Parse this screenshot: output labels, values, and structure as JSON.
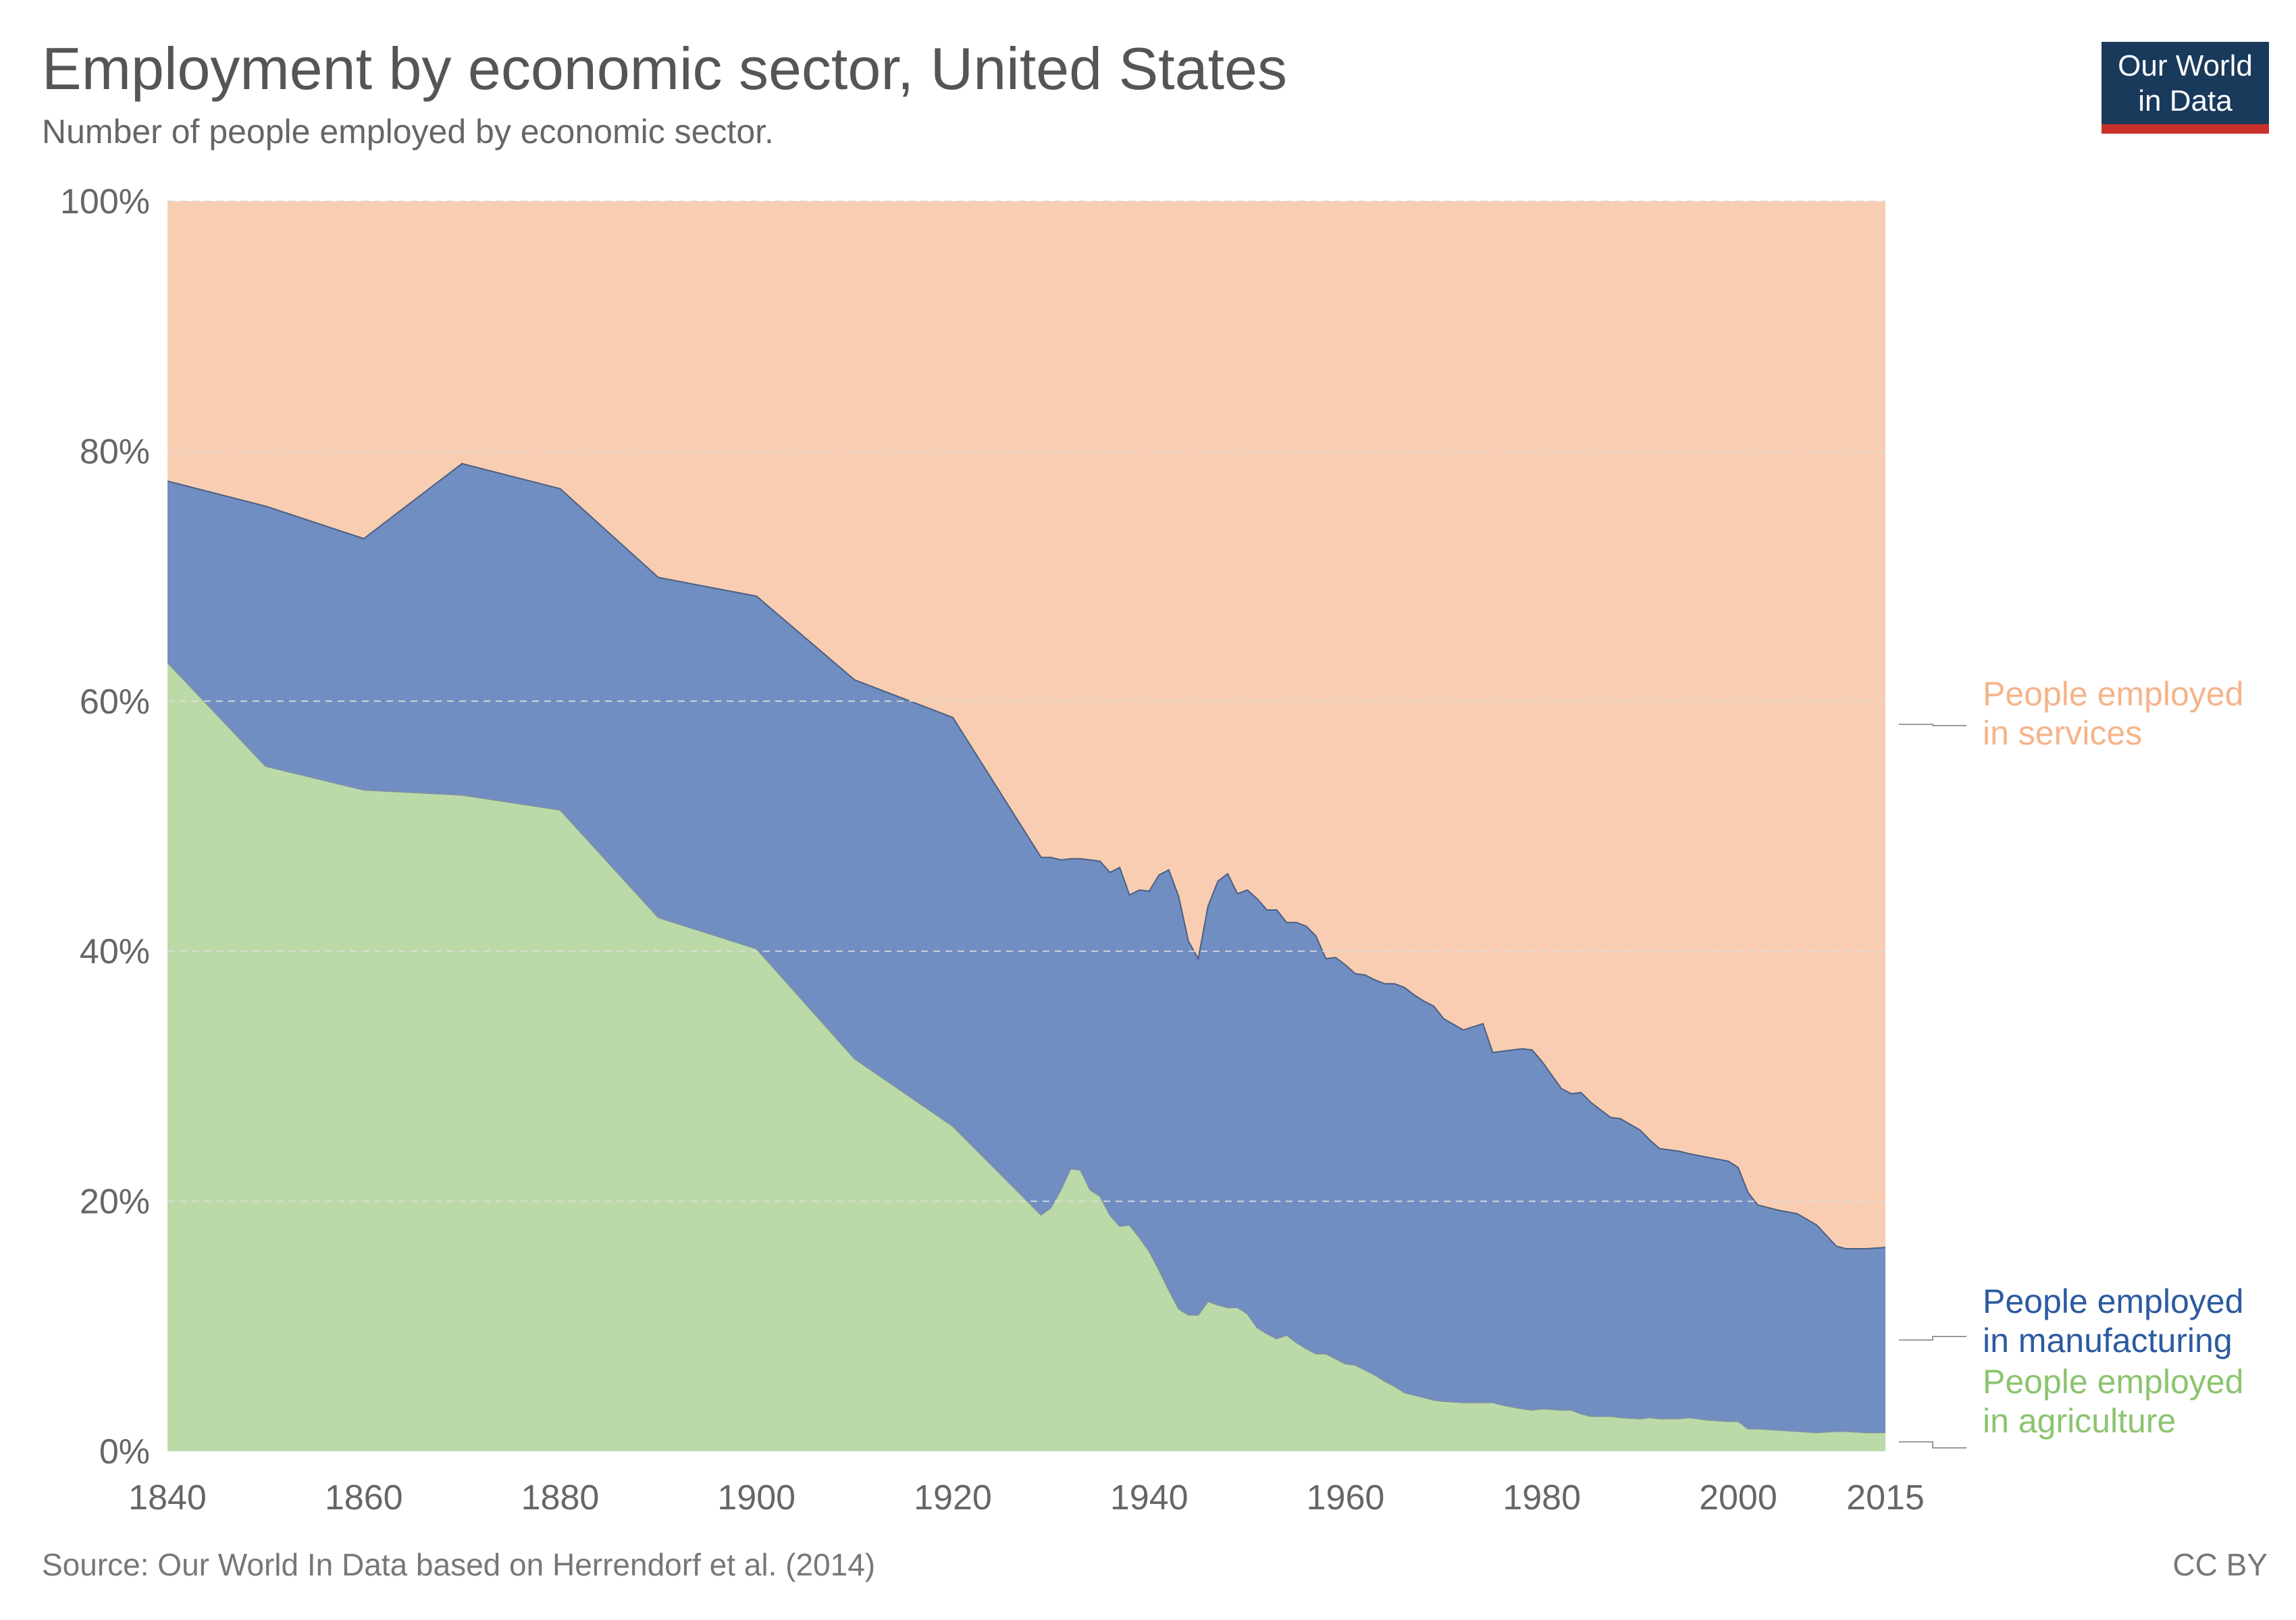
{
  "title": "Employment by economic sector, United States",
  "subtitle": "Number of people employed by economic sector.",
  "source": "Source: Our World In Data based on Herrendorf et al. (2014)",
  "license": "CC BY",
  "logo": {
    "line1": "Our World",
    "line2": "in Data",
    "bg_color": "#1a3a5c",
    "accent_color": "#c8312a"
  },
  "chart_data": {
    "type": "area",
    "stacking": "percent",
    "x_ticks": [
      1840,
      1860,
      1880,
      1900,
      1920,
      1940,
      1960,
      1980,
      2000,
      2015
    ],
    "y_ticks": [
      0,
      20,
      40,
      60,
      80,
      100
    ],
    "y_tick_labels": [
      "0%",
      "20%",
      "40%",
      "60%",
      "80%",
      "100%"
    ],
    "xlim": [
      1840,
      2015
    ],
    "ylim": [
      0,
      100
    ],
    "grid": "horizontal-dashed",
    "legend": "right, direct labels",
    "series": [
      {
        "name": "People employed in agriculture",
        "label_lines": [
          "People employed",
          "in agriculture"
        ],
        "color": "#bcdaa8",
        "label_color": "#8cc46f",
        "points": [
          [
            1840,
            63.1
          ],
          [
            1850,
            54.8
          ],
          [
            1860,
            52.9
          ],
          [
            1870,
            52.5
          ],
          [
            1880,
            51.3
          ],
          [
            1890,
            42.7
          ],
          [
            1900,
            40.2
          ],
          [
            1910,
            31.4
          ],
          [
            1920,
            26.0
          ],
          [
            1929,
            18.9
          ],
          [
            1930,
            19.5
          ],
          [
            1931,
            20.9
          ],
          [
            1932,
            22.6
          ],
          [
            1933,
            22.5
          ],
          [
            1934,
            20.9
          ],
          [
            1935,
            20.4
          ],
          [
            1936,
            18.9
          ],
          [
            1937,
            18.0
          ],
          [
            1938,
            18.1
          ],
          [
            1939,
            17.1
          ],
          [
            1940,
            16.0
          ],
          [
            1941,
            14.5
          ],
          [
            1942,
            12.9
          ],
          [
            1943,
            11.4
          ],
          [
            1944,
            10.9
          ],
          [
            1945,
            10.9
          ],
          [
            1946,
            12.0
          ],
          [
            1947,
            11.7
          ],
          [
            1948,
            11.5
          ],
          [
            1949,
            11.5
          ],
          [
            1950,
            11.0
          ],
          [
            1951,
            9.9
          ],
          [
            1952,
            9.4
          ],
          [
            1953,
            9.0
          ],
          [
            1954,
            9.3
          ],
          [
            1955,
            8.7
          ],
          [
            1956,
            8.2
          ],
          [
            1957,
            7.8
          ],
          [
            1958,
            7.8
          ],
          [
            1959,
            7.4
          ],
          [
            1960,
            7.0
          ],
          [
            1961,
            6.9
          ],
          [
            1962,
            6.5
          ],
          [
            1963,
            6.1
          ],
          [
            1964,
            5.6
          ],
          [
            1965,
            5.2
          ],
          [
            1966,
            4.7
          ],
          [
            1967,
            4.5
          ],
          [
            1968,
            4.3
          ],
          [
            1969,
            4.1
          ],
          [
            1970,
            4.0
          ],
          [
            1972,
            3.9
          ],
          [
            1974,
            3.9
          ],
          [
            1975,
            3.9
          ],
          [
            1976,
            3.7
          ],
          [
            1978,
            3.4
          ],
          [
            1979,
            3.3
          ],
          [
            1980,
            3.4
          ],
          [
            1982,
            3.3
          ],
          [
            1983,
            3.3
          ],
          [
            1984,
            3.0
          ],
          [
            1985,
            2.8
          ],
          [
            1987,
            2.8
          ],
          [
            1988,
            2.7
          ],
          [
            1990,
            2.6
          ],
          [
            1991,
            2.7
          ],
          [
            1992,
            2.6
          ],
          [
            1994,
            2.6
          ],
          [
            1995,
            2.7
          ],
          [
            1997,
            2.5
          ],
          [
            1999,
            2.4
          ],
          [
            2000,
            2.4
          ],
          [
            2001,
            1.8
          ],
          [
            2002,
            1.8
          ],
          [
            2004,
            1.7
          ],
          [
            2006,
            1.6
          ],
          [
            2008,
            1.5
          ],
          [
            2010,
            1.6
          ],
          [
            2011,
            1.6
          ],
          [
            2013,
            1.5
          ],
          [
            2015,
            1.5
          ]
        ]
      },
      {
        "name": "People employed in manufacturing",
        "label_lines": [
          "People employed",
          "in manufacturing"
        ],
        "color": "#718ec2",
        "label_color": "#2c5aa0",
        "points": [
          [
            1840,
            14.5
          ],
          [
            1850,
            20.8
          ],
          [
            1860,
            20.1
          ],
          [
            1870,
            26.5
          ],
          [
            1880,
            25.7
          ],
          [
            1890,
            27.2
          ],
          [
            1900,
            28.2
          ],
          [
            1910,
            30.3
          ],
          [
            1920,
            32.7
          ],
          [
            1929,
            28.6
          ],
          [
            1930,
            28.0
          ],
          [
            1931,
            26.4
          ],
          [
            1932,
            24.8
          ],
          [
            1933,
            24.9
          ],
          [
            1934,
            26.4
          ],
          [
            1935,
            26.8
          ],
          [
            1936,
            27.4
          ],
          [
            1937,
            28.7
          ],
          [
            1938,
            26.4
          ],
          [
            1939,
            27.8
          ],
          [
            1940,
            28.8
          ],
          [
            1941,
            31.6
          ],
          [
            1942,
            33.6
          ],
          [
            1943,
            33.0
          ],
          [
            1944,
            29.9
          ],
          [
            1945,
            28.5
          ],
          [
            1946,
            31.6
          ],
          [
            1947,
            33.9
          ],
          [
            1948,
            34.7
          ],
          [
            1949,
            33.1
          ],
          [
            1950,
            33.9
          ],
          [
            1951,
            34.3
          ],
          [
            1952,
            33.9
          ],
          [
            1953,
            34.3
          ],
          [
            1954,
            33.0
          ],
          [
            1955,
            33.6
          ],
          [
            1956,
            33.8
          ],
          [
            1957,
            33.4
          ],
          [
            1958,
            31.6
          ],
          [
            1959,
            32.1
          ],
          [
            1960,
            31.9
          ],
          [
            1961,
            31.3
          ],
          [
            1962,
            31.6
          ],
          [
            1963,
            31.6
          ],
          [
            1964,
            31.8
          ],
          [
            1965,
            32.2
          ],
          [
            1966,
            32.4
          ],
          [
            1967,
            32.0
          ],
          [
            1968,
            31.7
          ],
          [
            1969,
            31.5
          ],
          [
            1970,
            30.6
          ],
          [
            1972,
            29.8
          ],
          [
            1974,
            30.3
          ],
          [
            1975,
            28.0
          ],
          [
            1976,
            28.3
          ],
          [
            1978,
            28.8
          ],
          [
            1979,
            28.8
          ],
          [
            1980,
            27.8
          ],
          [
            1982,
            25.7
          ],
          [
            1983,
            25.3
          ],
          [
            1984,
            25.7
          ],
          [
            1985,
            25.1
          ],
          [
            1987,
            23.9
          ],
          [
            1988,
            23.9
          ],
          [
            1990,
            23.1
          ],
          [
            1991,
            22.2
          ],
          [
            1992,
            21.6
          ],
          [
            1994,
            21.4
          ],
          [
            1995,
            21.1
          ],
          [
            1997,
            21.0
          ],
          [
            1999,
            20.8
          ],
          [
            2000,
            20.3
          ],
          [
            2001,
            18.9
          ],
          [
            2002,
            17.9
          ],
          [
            2004,
            17.6
          ],
          [
            2006,
            17.4
          ],
          [
            2008,
            16.6
          ],
          [
            2010,
            14.8
          ],
          [
            2011,
            14.6
          ],
          [
            2013,
            14.7
          ],
          [
            2015,
            14.8
          ]
        ]
      },
      {
        "name": "People employed in services",
        "label_lines": [
          "People employed",
          "in services"
        ],
        "color": "#f9cdb1",
        "label_color": "#f5b48a",
        "points": [
          [
            1840,
            22.4
          ],
          [
            1850,
            24.4
          ],
          [
            1860,
            27.0
          ],
          [
            1870,
            21.0
          ],
          [
            1880,
            23.0
          ],
          [
            1890,
            30.1
          ],
          [
            1900,
            31.6
          ],
          [
            1910,
            38.3
          ],
          [
            1920,
            41.3
          ],
          [
            1929,
            52.5
          ],
          [
            1930,
            52.5
          ],
          [
            1931,
            52.7
          ],
          [
            1932,
            52.6
          ],
          [
            1933,
            52.6
          ],
          [
            1934,
            52.7
          ],
          [
            1935,
            52.8
          ],
          [
            1936,
            53.7
          ],
          [
            1937,
            53.3
          ],
          [
            1938,
            55.5
          ],
          [
            1939,
            55.1
          ],
          [
            1940,
            55.2
          ],
          [
            1941,
            53.9
          ],
          [
            1942,
            53.5
          ],
          [
            1943,
            55.6
          ],
          [
            1944,
            59.2
          ],
          [
            1945,
            60.6
          ],
          [
            1946,
            56.4
          ],
          [
            1947,
            54.4
          ],
          [
            1948,
            53.8
          ],
          [
            1949,
            55.4
          ],
          [
            1950,
            55.1
          ],
          [
            1951,
            55.8
          ],
          [
            1952,
            56.7
          ],
          [
            1953,
            56.7
          ],
          [
            1954,
            57.7
          ],
          [
            1955,
            57.7
          ],
          [
            1956,
            58.0
          ],
          [
            1957,
            58.8
          ],
          [
            1958,
            60.6
          ],
          [
            1959,
            60.5
          ],
          [
            1960,
            61.1
          ],
          [
            1961,
            61.8
          ],
          [
            1962,
            61.9
          ],
          [
            1963,
            62.3
          ],
          [
            1964,
            62.6
          ],
          [
            1965,
            62.6
          ],
          [
            1966,
            62.9
          ],
          [
            1967,
            63.5
          ],
          [
            1968,
            64.0
          ],
          [
            1969,
            64.4
          ],
          [
            1970,
            65.4
          ],
          [
            1972,
            66.3
          ],
          [
            1974,
            65.8
          ],
          [
            1975,
            68.1
          ],
          [
            1976,
            68.0
          ],
          [
            1978,
            67.8
          ],
          [
            1979,
            67.9
          ],
          [
            1980,
            68.8
          ],
          [
            1982,
            71.0
          ],
          [
            1983,
            71.4
          ],
          [
            1984,
            71.3
          ],
          [
            1985,
            72.1
          ],
          [
            1987,
            73.3
          ],
          [
            1988,
            73.4
          ],
          [
            1990,
            74.3
          ],
          [
            1991,
            75.1
          ],
          [
            1992,
            75.8
          ],
          [
            1994,
            76.0
          ],
          [
            1995,
            76.2
          ],
          [
            1997,
            76.5
          ],
          [
            1999,
            76.8
          ],
          [
            2000,
            77.3
          ],
          [
            2001,
            79.3
          ],
          [
            2002,
            80.3
          ],
          [
            2004,
            80.7
          ],
          [
            2006,
            81.0
          ],
          [
            2008,
            81.9
          ],
          [
            2010,
            83.6
          ],
          [
            2011,
            83.8
          ],
          [
            2013,
            83.8
          ],
          [
            2015,
            83.7
          ]
        ]
      }
    ]
  }
}
